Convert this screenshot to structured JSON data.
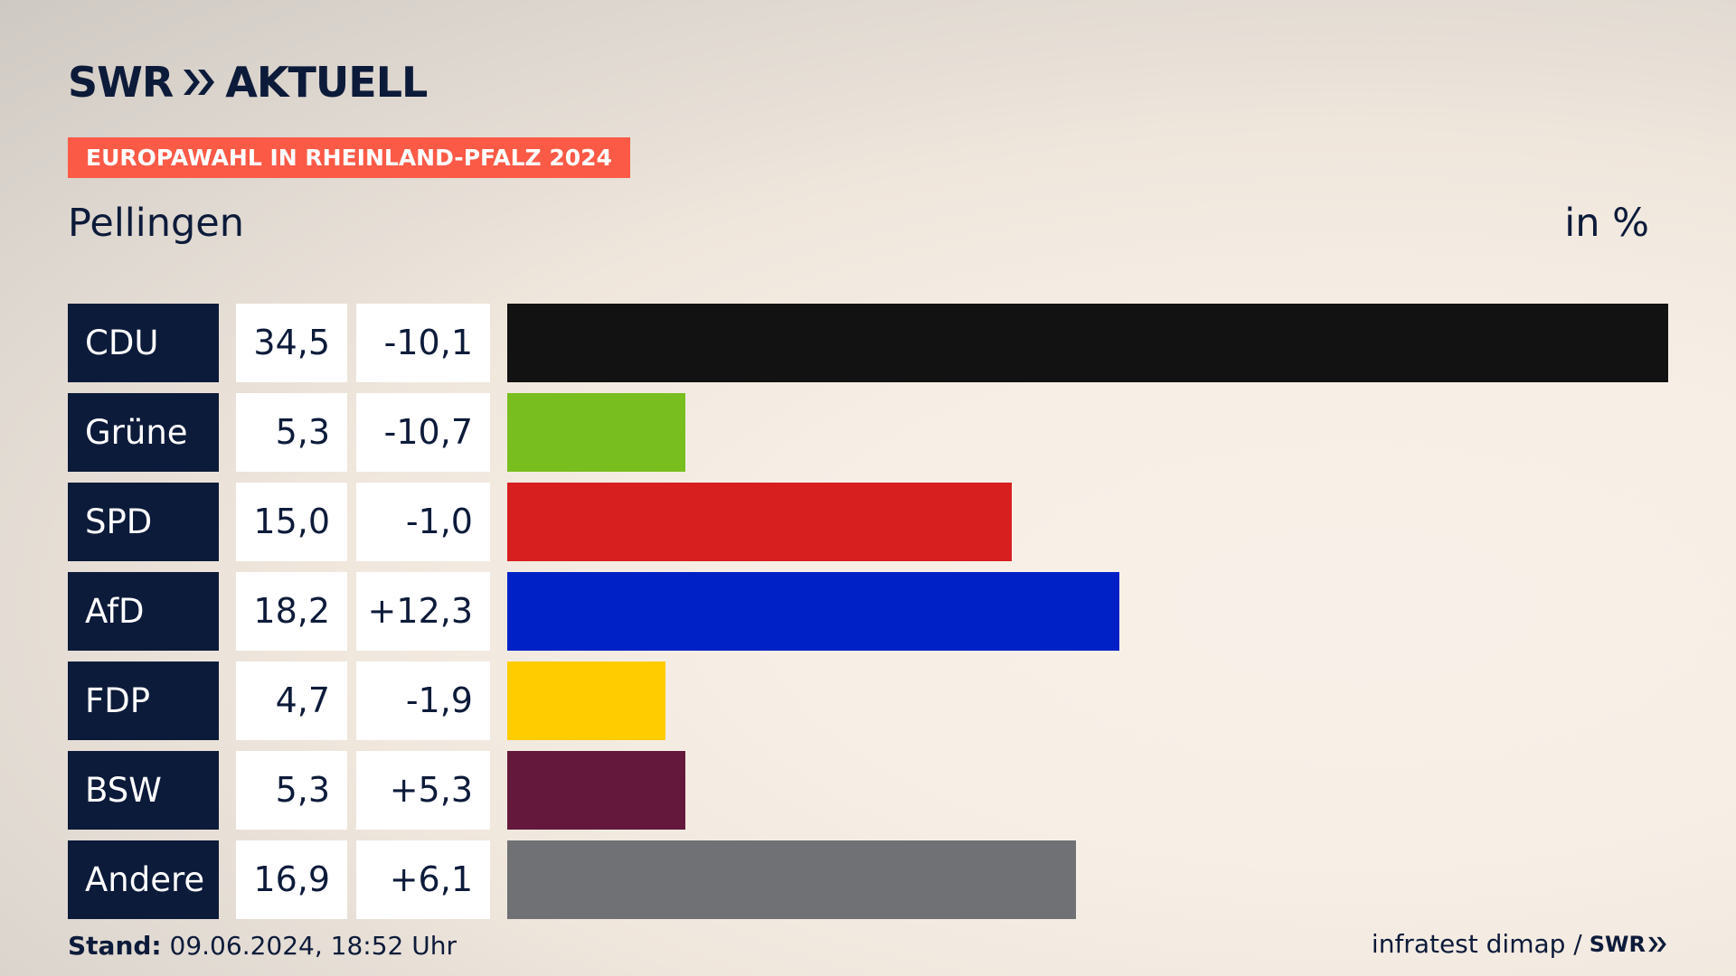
{
  "header": {
    "brand_left": "SWR",
    "brand_right": "AKTUELL",
    "tag": "EUROPAWAHL IN RHEINLAND-PFALZ 2024",
    "place": "Pellingen",
    "unit": "in %"
  },
  "colors": {
    "navy": "#0d1b3a",
    "tag": "#fb5a47",
    "CDU": "#121212",
    "Grüne": "#78be1e",
    "SPD": "#d71f1f",
    "AfD": "#0021c6",
    "FDP": "#ffcc00",
    "BSW": "#64193c",
    "Andere": "#707174"
  },
  "chart_data": {
    "type": "bar",
    "categories": [
      "CDU",
      "Grüne",
      "SPD",
      "AfD",
      "FDP",
      "BSW",
      "Andere"
    ],
    "values": [
      34.5,
      5.3,
      15.0,
      18.2,
      4.7,
      5.3,
      16.9
    ],
    "value_labels": [
      "34,5",
      "5,3",
      "15,0",
      "18,2",
      "4,7",
      "5,3",
      "16,9"
    ],
    "changes": [
      -10.1,
      -10.7,
      -1.0,
      12.3,
      -1.9,
      5.3,
      6.1
    ],
    "change_labels": [
      "-10,1",
      "-10,7",
      "-1,0",
      "+12,3",
      "-1,9",
      "+5,3",
      "+6,1"
    ],
    "colors": [
      "#121212",
      "#78be1e",
      "#d71f1f",
      "#0021c6",
      "#ffcc00",
      "#64193c",
      "#707174"
    ],
    "title": "Pellingen",
    "ylabel": "in %",
    "grid": false
  },
  "footer": {
    "stand_label": "Stand:",
    "stand_value": "09.06.2024, 18:52 Uhr",
    "source": "infratest dimap /",
    "source_brand": "SWR"
  }
}
